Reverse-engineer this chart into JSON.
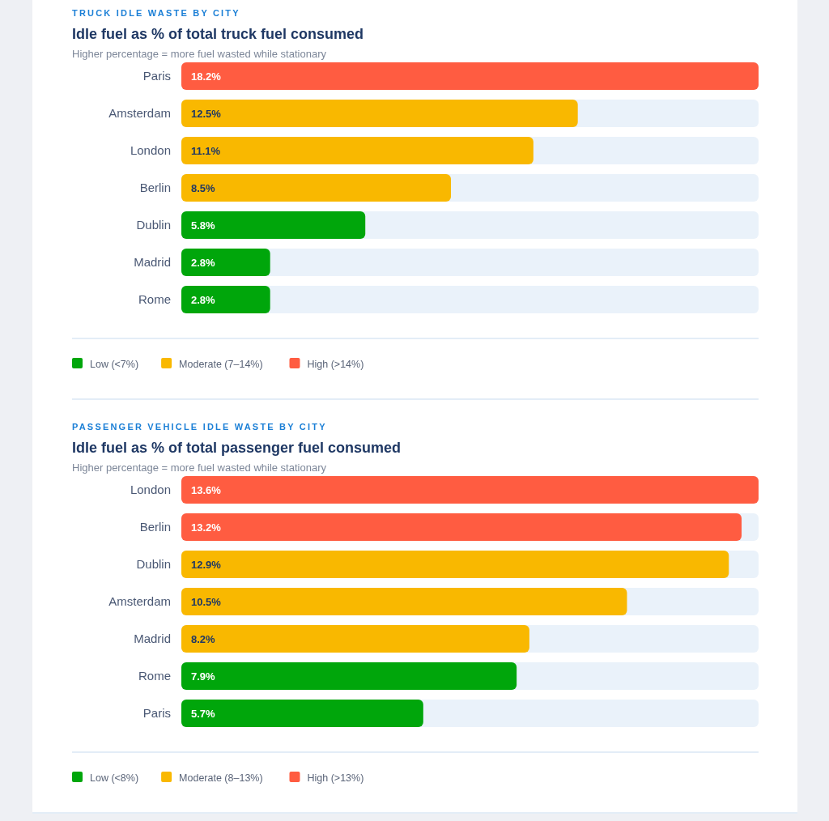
{
  "chart_data": [
    {
      "type": "bar",
      "orientation": "horizontal",
      "title": "Idle fuel as % of total truck fuel consumed",
      "subtitle": "Higher percentage = more fuel wasted while stationary",
      "annotations": [
        "TRUCK IDLE WASTE BY CITY"
      ],
      "categories": [
        "Paris",
        "Amsterdam",
        "London",
        "Berlin",
        "Dublin",
        "Madrid",
        "Rome"
      ],
      "series": [
        {
          "name": "Low (<7%)",
          "color": "#00a60b",
          "values": [
            null,
            null,
            null,
            null,
            5.8,
            2.8,
            2.8
          ],
          "value_labels": [
            null,
            null,
            null,
            null,
            "5.8%",
            "2.8%",
            "2.8%"
          ]
        },
        {
          "name": "Moderate (7–14%)",
          "color": "#f9b800",
          "values": [
            null,
            12.5,
            11.1,
            8.5,
            null,
            null,
            null
          ],
          "value_labels": [
            null,
            "12.5%",
            "11.1%",
            "8.5%",
            null,
            null,
            null
          ]
        },
        {
          "name": "High (>14%)",
          "color": "#ff5c41",
          "values": [
            18.2,
            null,
            null,
            null,
            null,
            null,
            null
          ],
          "value_labels": [
            "18.2%",
            null,
            null,
            null,
            null,
            null,
            null
          ]
        }
      ],
      "tick_labels": "y",
      "legend": "bottom"
    },
    {
      "type": "bar",
      "orientation": "horizontal",
      "title": "Idle fuel as % of total passenger fuel consumed",
      "subtitle": "Higher percentage = more fuel wasted while stationary",
      "annotations": [
        "PASSENGER VEHICLE IDLE WASTE BY CITY"
      ],
      "categories": [
        "London",
        "Berlin",
        "Dublin",
        "Amsterdam",
        "Madrid",
        "Rome",
        "Paris"
      ],
      "series": [
        {
          "name": "Low (<8%)",
          "color": "#00a60b",
          "values": [
            null,
            null,
            null,
            null,
            null,
            7.9,
            5.7
          ],
          "value_labels": [
            null,
            null,
            null,
            null,
            null,
            "7.9%",
            "5.7%"
          ]
        },
        {
          "name": "Moderate (8–13%)",
          "color": "#f9b800",
          "values": [
            null,
            null,
            12.9,
            10.5,
            8.2,
            null,
            null
          ],
          "value_labels": [
            null,
            null,
            "12.9%",
            "10.5%",
            "8.2%",
            null,
            null
          ]
        },
        {
          "name": "High (>13%)",
          "color": "#ff5c41",
          "values": [
            13.6,
            13.2,
            null,
            null,
            null,
            null,
            null
          ],
          "value_labels": [
            "13.6%",
            "13.2%",
            null,
            null,
            null,
            null,
            null
          ]
        }
      ],
      "tick_labels": "y",
      "legend": "bottom"
    }
  ]
}
